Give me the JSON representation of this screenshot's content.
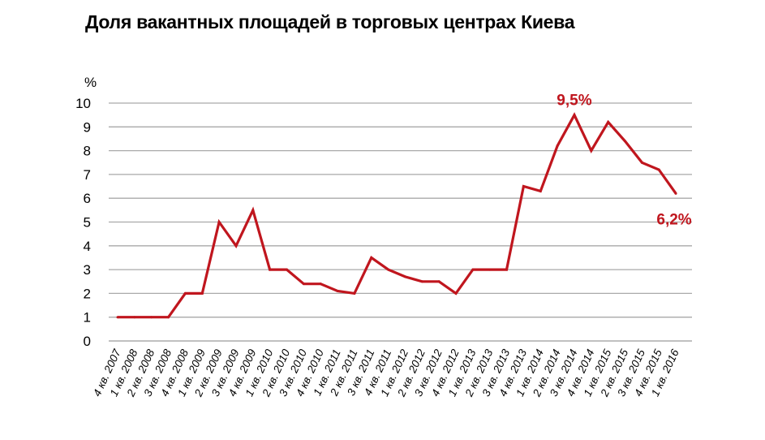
{
  "chart_data": {
    "type": "line",
    "title": "Доля вакантных площадей в торговых центрах Киева",
    "ylabel": "%",
    "ylim": [
      0,
      10
    ],
    "yticks": [
      "0",
      "1",
      "2",
      "3",
      "4",
      "5",
      "6",
      "7",
      "8",
      "9",
      "10"
    ],
    "grid": true,
    "categories": [
      "4 кв. 2007",
      "1 кв. 2008",
      "2 кв. 2008",
      "3 кв. 2008",
      "4 кв. 2008",
      "1 кв. 2009",
      "2 кв. 2009",
      "3 кв. 2009",
      "4 кв. 2009",
      "1 кв. 2010",
      "2 кв. 2010",
      "3 кв. 2010",
      "4 кв. 2010",
      "1 кв. 2011",
      "2 кв. 2011",
      "3 кв. 2011",
      "4 кв. 2011",
      "1 кв. 2012",
      "2 кв. 2012",
      "3 кв. 2012",
      "4 кв. 2012",
      "1 кв. 2013",
      "2 кв. 2013",
      "3 кв. 2013",
      "4 кв. 2013",
      "1 кв. 2014",
      "2 кв. 2014",
      "3 кв. 2014",
      "4 кв. 2014",
      "1 кв. 2015",
      "2 кв. 2015",
      "3 кв. 2015",
      "4 кв. 2015",
      "1 кв. 2016"
    ],
    "series": [
      {
        "values": [
          1,
          1,
          1,
          1,
          2,
          2,
          5,
          4,
          5.5,
          3,
          3,
          2.4,
          2.4,
          2.1,
          2,
          3.5,
          3,
          2.7,
          2.5,
          2.5,
          2,
          3,
          3,
          3,
          6.5,
          6.3,
          8.2,
          9.5,
          8,
          9.2,
          8.4,
          7.5,
          7.2,
          6.2
        ],
        "color": "#c0161e"
      }
    ],
    "annotations": [
      {
        "text": "9,5%",
        "category": "3 кв. 2014",
        "value": 9.5,
        "color": "#c0161e"
      },
      {
        "text": "6,2%",
        "category": "1 кв. 2016",
        "value": 6.2,
        "color": "#c0161e"
      }
    ]
  }
}
